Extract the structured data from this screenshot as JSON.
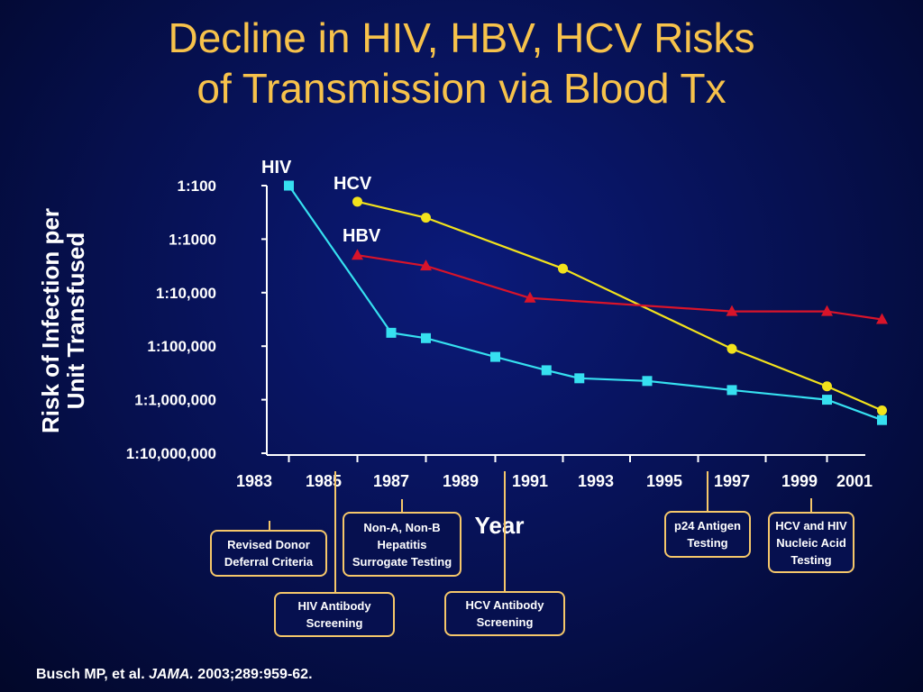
{
  "title_line1": "Decline in HIV, HBV, HCV Risks",
  "title_line2": "of Transmission via Blood Tx",
  "ylabel_line1": "Risk of Infection per",
  "ylabel_line2": "Unit Transfused",
  "source_prefix": "Busch MP, et al. ",
  "source_journal": "JAMA.",
  "source_suffix": " 2003;289:959-62.",
  "colors": {
    "background": "#06104f",
    "title": "#f7c24b",
    "HIV": "#36e0f0",
    "HCV": "#f2e21c",
    "HBV": "#d8142a",
    "annotation_border": "#f5c76a"
  },
  "chart_data": {
    "type": "line",
    "xlabel": "Year",
    "ylabel": "Risk of Infection per Unit Transfused",
    "y_scale": "log",
    "x_ticks": [
      1983,
      1985,
      1987,
      1989,
      1991,
      1993,
      1995,
      1997,
      1999,
      2001
    ],
    "y_ticks": [
      "1:100",
      "1:1000",
      "1:10,000",
      "1:100,000",
      "1:1,000,000",
      "1:10,000,000"
    ],
    "y_tick_exponents": [
      2,
      3,
      4,
      5,
      6,
      7
    ],
    "xlim": [
      1983,
      2001
    ],
    "series": [
      {
        "name": "HIV",
        "marker": "square",
        "x": [
          1984,
          1987,
          1988,
          1990,
          1991.5,
          1992.5,
          1994.5,
          1997,
          2000,
          2002
        ],
        "log_odds_denominator": [
          2.0,
          4.75,
          4.85,
          5.2,
          5.45,
          5.6,
          5.65,
          5.82,
          6.0,
          6.38
        ]
      },
      {
        "name": "HCV",
        "marker": "circle",
        "x": [
          1986,
          1988,
          1992,
          1997,
          2000,
          2002
        ],
        "log_odds_denominator": [
          2.3,
          2.6,
          3.55,
          5.05,
          5.75,
          6.2
        ]
      },
      {
        "name": "HBV",
        "marker": "triangle",
        "x": [
          1986,
          1988,
          1991,
          1997,
          2000,
          2002
        ],
        "log_odds_denominator": [
          3.3,
          3.5,
          4.1,
          4.35,
          4.35,
          4.5
        ]
      }
    ]
  },
  "annotations": [
    {
      "label": "Revised Donor\nDeferral Criteria",
      "year": 1983.5
    },
    {
      "label": "HIV Antibody\nScreening",
      "year": 1985.5
    },
    {
      "label": "Non-A, Non-B\nHepatitis\nSurrogate Testing",
      "year": 1987
    },
    {
      "label": "HCV Antibody\nScreening",
      "year": 1990.5
    },
    {
      "label": "p24 Antigen\nTesting",
      "year": 1996
    },
    {
      "label": "HCV and HIV\nNucleic Acid\nTesting",
      "year": 1999
    }
  ]
}
